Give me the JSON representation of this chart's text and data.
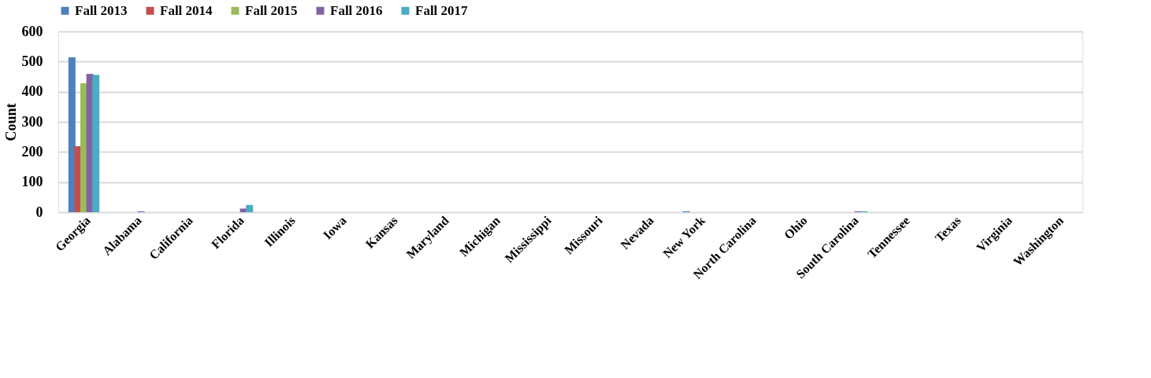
{
  "chart_data": {
    "type": "bar",
    "ylabel": "Count",
    "categories": [
      "Georgia",
      "Alabama",
      "California",
      "Florida",
      "Illinois",
      "Iowa",
      "Kansas",
      "Maryland",
      "Michigan",
      "Mississippi",
      "Missouri",
      "Nevada",
      "New York",
      "North Carolina",
      "Ohio",
      "South Carolina",
      "Tennessee",
      "Texas",
      "Virginia",
      "Washington"
    ],
    "series": [
      {
        "name": "Fall 2013",
        "color": "#4f81bd",
        "values": [
          514,
          0,
          0,
          0,
          0,
          0,
          0,
          0,
          0,
          0,
          0,
          0,
          3,
          0,
          0,
          0,
          0,
          0,
          0,
          0
        ]
      },
      {
        "name": "Fall 2014",
        "color": "#c0504d",
        "values": [
          219,
          0,
          0,
          null,
          0,
          0,
          0,
          0,
          0,
          0,
          0,
          0,
          0,
          0,
          0,
          0,
          0,
          0,
          0,
          0
        ]
      },
      {
        "name": "Fall 2015",
        "color": "#9bbb59",
        "values": [
          428,
          0,
          0,
          null,
          0,
          0,
          0,
          0,
          0,
          0,
          0,
          0,
          0,
          0,
          0,
          null,
          0,
          0,
          0,
          0
        ]
      },
      {
        "name": "Fall 2016",
        "color": "#8064a2",
        "values": [
          459,
          3,
          0,
          12,
          0,
          0,
          0,
          0,
          0,
          0,
          0,
          0,
          0,
          0,
          0,
          3,
          0,
          0,
          0,
          0
        ]
      },
      {
        "name": "Fall 2017",
        "color": "#4bacc6",
        "values": [
          456,
          null,
          0,
          24,
          0,
          null,
          0,
          0,
          0,
          0,
          0,
          0,
          0,
          0,
          0,
          3,
          0,
          0,
          0,
          0
        ]
      }
    ],
    "ylim": [
      0,
      600
    ],
    "yticks": [
      0,
      100,
      200,
      300,
      400,
      500,
      600
    ],
    "grid": "y",
    "legend": "top"
  }
}
